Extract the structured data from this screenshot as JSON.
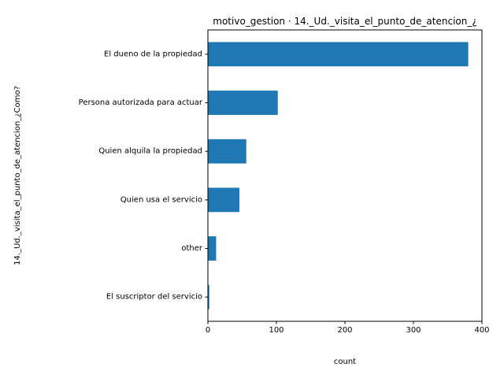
{
  "chart_data": {
    "type": "bar",
    "orientation": "horizontal",
    "title": "motivo_gestion · 14._Ud._visita_el_punto_de_atencion_¿",
    "xlabel": "count",
    "ylabel": "14._Ud._visita_el_punto_de_atencion_¿Como?",
    "categories": [
      "El suscriptor del servicio",
      "other",
      "Quien usa el servicio",
      "Quien alquila la propiedad",
      "Persona autorizada para actuar",
      "El dueno de la propiedad"
    ],
    "values": [
      2,
      12,
      46,
      56,
      102,
      380
    ],
    "xlim": [
      0,
      400
    ],
    "xticks": [
      "0",
      "100",
      "200",
      "300",
      "400"
    ],
    "grid": false,
    "legend": "none",
    "bar_color": "#1f77b4"
  }
}
